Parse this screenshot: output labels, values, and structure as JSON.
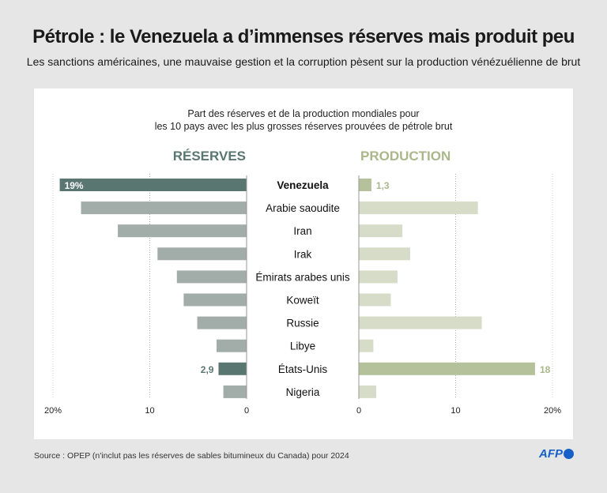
{
  "title": "Pétrole : le Venezuela a d’immenses réserves mais produit peu",
  "subtitle": "Les sanctions américaines, une mauvaise gestion et la corruption pèsent sur la production vénézuélienne de brut",
  "source": "Source : OPEP (n'inclut pas les réserves de sables bitumineux du Canada)  pour 2024",
  "logo": "AFP",
  "colors": {
    "reserves_highlight": "#5a7670",
    "reserves": "#a2aca8",
    "production_highlight": "#b4c19a",
    "production": "#d7dcc8",
    "reserves_header": "#5a7670",
    "production_header": "#a9b78a"
  },
  "chart_data": {
    "type": "bar",
    "orientation": "horizontal-butterfly",
    "title": "Part des réserves et de la production mondiales pour\nles 10 pays avec les plus grosses réserves prouvées de pétrole brut",
    "title_lines": [
      "Part des réserves et de la production mondiales pour",
      "les 10 pays avec les plus grosses réserves prouvées de pétrole brut"
    ],
    "categories": [
      "Venezuela",
      "Arabie saoudite",
      "Iran",
      "Irak",
      "Émirats arabes unis",
      "Koweït",
      "Russie",
      "Libye",
      "États-Unis",
      "Nigeria"
    ],
    "highlighted": [
      "Venezuela",
      "États-Unis"
    ],
    "series": [
      {
        "name": "RÉSERVES",
        "values": [
          19.3,
          17.1,
          13.3,
          9.2,
          7.2,
          6.5,
          5.1,
          3.1,
          2.9,
          2.4
        ],
        "xlim": [
          20,
          0
        ],
        "ticks": [
          "20%",
          "10",
          "0"
        ],
        "data_labels": {
          "0": "19%",
          "8": "2,9"
        }
      },
      {
        "name": "PRODUCTION",
        "values": [
          1.3,
          12.3,
          4.5,
          5.3,
          4.0,
          3.3,
          12.7,
          1.5,
          18.2,
          1.8
        ],
        "xlim": [
          0,
          20
        ],
        "ticks": [
          "0",
          "10",
          "20%"
        ],
        "data_labels": {
          "0": "1,3",
          "8": "18"
        }
      }
    ],
    "grid": true
  }
}
